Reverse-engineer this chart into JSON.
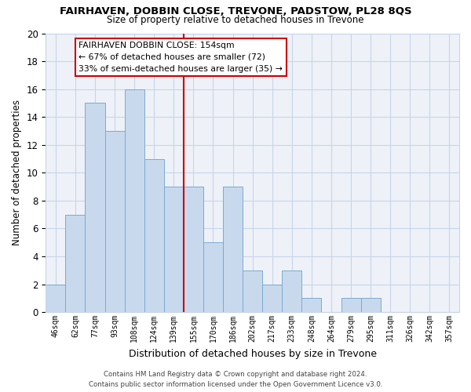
{
  "title": "FAIRHAVEN, DOBBIN CLOSE, TREVONE, PADSTOW, PL28 8QS",
  "subtitle": "Size of property relative to detached houses in Trevone",
  "xlabel": "Distribution of detached houses by size in Trevone",
  "ylabel": "Number of detached properties",
  "bin_labels": [
    "46sqm",
    "62sqm",
    "77sqm",
    "93sqm",
    "108sqm",
    "124sqm",
    "139sqm",
    "155sqm",
    "170sqm",
    "186sqm",
    "202sqm",
    "217sqm",
    "233sqm",
    "248sqm",
    "264sqm",
    "279sqm",
    "295sqm",
    "311sqm",
    "326sqm",
    "342sqm",
    "357sqm"
  ],
  "bar_heights": [
    2,
    7,
    15,
    13,
    16,
    11,
    9,
    9,
    5,
    9,
    3,
    2,
    3,
    1,
    0,
    1,
    1,
    0,
    0,
    0,
    0
  ],
  "bar_color": "#c8d9ee",
  "bar_edge_color": "#7aaad0",
  "vline_x_index": 6.5,
  "vline_color": "#cc0000",
  "ylim": [
    0,
    20
  ],
  "yticks": [
    0,
    2,
    4,
    6,
    8,
    10,
    12,
    14,
    16,
    18,
    20
  ],
  "annotation_title": "FAIRHAVEN DOBBIN CLOSE: 154sqm",
  "annotation_line1": "← 67% of detached houses are smaller (72)",
  "annotation_line2": "33% of semi-detached houses are larger (35) →",
  "annotation_box_edge": "#cc0000",
  "footer_line1": "Contains HM Land Registry data © Crown copyright and database right 2024.",
  "footer_line2": "Contains public sector information licensed under the Open Government Licence v3.0.",
  "background_color": "#ffffff",
  "grid_color": "#c8d4e8",
  "grid_bg": "#eef2f8"
}
